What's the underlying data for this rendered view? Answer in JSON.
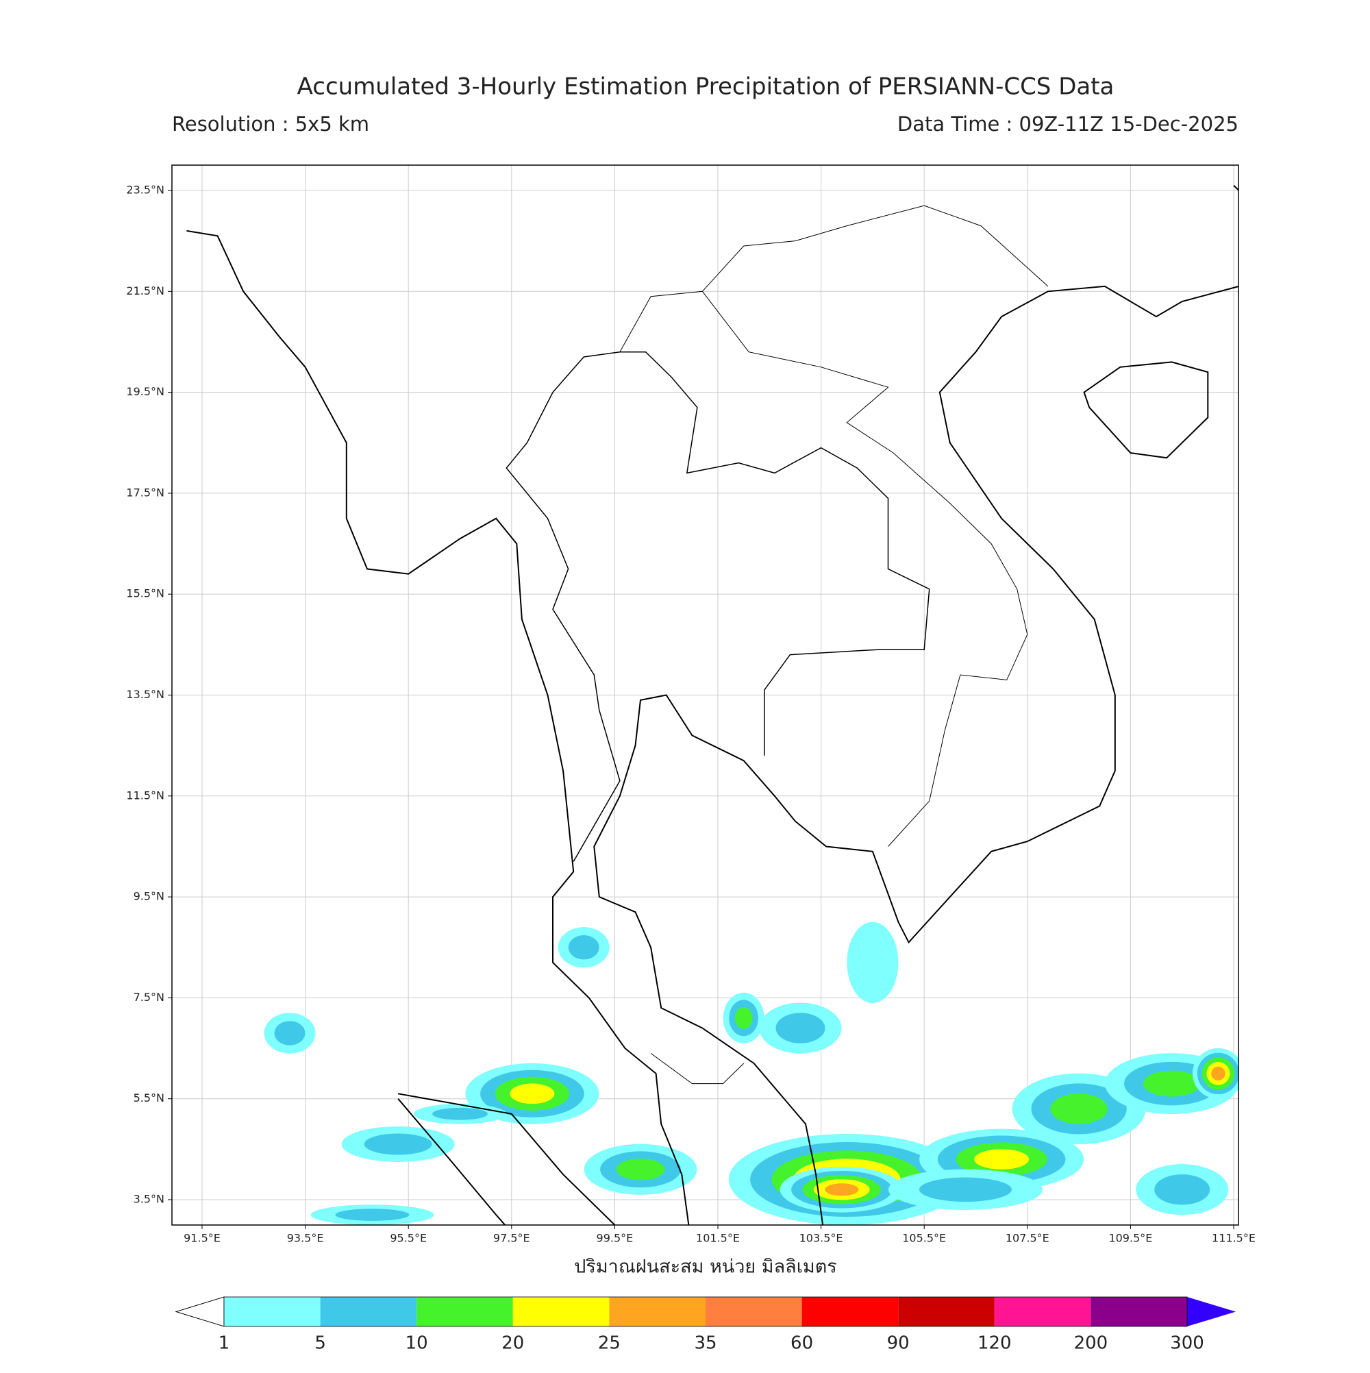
{
  "header": {
    "title": "Accumulated 3-Hourly Estimation Precipitation of PERSIANN-CCS Data",
    "resolution": "Resolution : 5x5 km",
    "data_time": "Data Time : 09Z-11Z 15-Dec-2025"
  },
  "map": {
    "lat_labels": [
      "23.5°N",
      "21.5°N",
      "19.5°N",
      "17.5°N",
      "15.5°N",
      "13.5°N",
      "11.5°N",
      "9.5°N",
      "7.5°N",
      "5.5°N",
      "3.5°N"
    ],
    "lon_labels": [
      "91.5°E",
      "93.5°E",
      "95.5°E",
      "97.5°E",
      "99.5°E",
      "101.5°E",
      "103.5°E",
      "105.5°E",
      "107.5°E",
      "109.5°E",
      "111.5°E"
    ]
  },
  "colorbar": {
    "label": "ปริมาณฝนสะสม หน่วย มิลลิเมตร",
    "levels": [
      "1",
      "5",
      "10",
      "20",
      "25",
      "35",
      "60",
      "90",
      "120",
      "200",
      "300"
    ],
    "colors": [
      "#80ffff",
      "#40c8e8",
      "#46f22c",
      "#ffff00",
      "#ffa520",
      "#ff7f3f",
      "#ff0000",
      "#cc0000",
      "#ff1493",
      "#8b008b"
    ],
    "under_color": "#ffffff",
    "over_color": "#3300ff"
  }
}
